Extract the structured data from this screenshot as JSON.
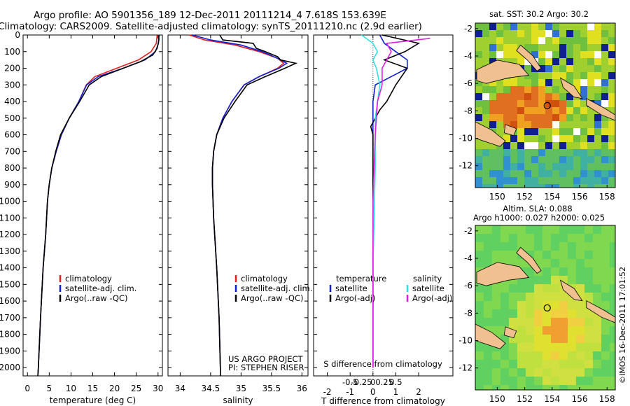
{
  "header": {
    "title_line1": "Argo profile: AO 5901356_189 12-Dec-2011 20111214_4 7.618S 153.639E",
    "title_line2": "Climatology: CARS2009. Satellite-adjusted climatology: synTS_20111210.nc (2.9d earlier)"
  },
  "side_note": "©IMOS 16-Dec-2011 17:01:52",
  "credits": {
    "line1": "US ARGO PROJECT",
    "line2": "PI: STEPHEN RISER"
  },
  "colors": {
    "climatology": "#e02020",
    "satellite": "#1020d0",
    "argo": "#000000",
    "salinity_satellite": "#30e0e8",
    "salinity_argo": "#e020e0",
    "land": "#f0c090"
  },
  "chart_data": [
    {
      "name": "temperature-profile",
      "type": "line",
      "xlabel": "temperature (deg C)",
      "xlim": [
        -1,
        31
      ],
      "ylim": [
        0,
        2050
      ],
      "y_inverted": true,
      "xticks": [
        0,
        5,
        10,
        15,
        20,
        25,
        30
      ],
      "yticks": [
        0,
        100,
        200,
        300,
        400,
        500,
        600,
        700,
        800,
        900,
        1000,
        1100,
        1200,
        1300,
        1400,
        1500,
        1600,
        1700,
        1800,
        1900,
        2000
      ],
      "legend": [
        "climatology",
        "satellite-adj. clim.",
        "Argo(..raw -QC)"
      ],
      "series": [
        {
          "name": "climatology",
          "color": "#e02020",
          "points": [
            [
              29.8,
              0
            ],
            [
              29.6,
              50
            ],
            [
              28.4,
              100
            ],
            [
              25.5,
              150
            ],
            [
              20.5,
              200
            ],
            [
              15.5,
              250
            ],
            [
              13.5,
              300
            ],
            [
              11.8,
              400
            ],
            [
              9.6,
              500
            ],
            [
              7.8,
              600
            ],
            [
              6.6,
              700
            ],
            [
              5.6,
              800
            ],
            [
              5.0,
              900
            ],
            [
              4.6,
              1000
            ],
            [
              4.2,
              1200
            ],
            [
              3.6,
              1400
            ],
            [
              3.0,
              1700
            ],
            [
              2.5,
              2000
            ],
            [
              2.4,
              2050
            ]
          ]
        },
        {
          "name": "satellite-adj. clim.",
          "color": "#1020d0",
          "points": [
            [
              30.2,
              0
            ],
            [
              30.1,
              50
            ],
            [
              29.4,
              100
            ],
            [
              27.0,
              150
            ],
            [
              22.0,
              200
            ],
            [
              16.3,
              250
            ],
            [
              13.6,
              300
            ],
            [
              11.8,
              400
            ],
            [
              9.6,
              500
            ],
            [
              7.8,
              600
            ],
            [
              6.6,
              700
            ],
            [
              5.6,
              800
            ],
            [
              5.0,
              900
            ],
            [
              4.6,
              1000
            ],
            [
              4.2,
              1200
            ],
            [
              3.6,
              1400
            ],
            [
              3.0,
              1700
            ],
            [
              2.5,
              2000
            ],
            [
              2.4,
              2050
            ]
          ]
        },
        {
          "name": "Argo(..raw -QC)",
          "color": "#000000",
          "points": [
            [
              30.2,
              0
            ],
            [
              30.2,
              30
            ],
            [
              29.8,
              80
            ],
            [
              28.8,
              120
            ],
            [
              26.0,
              160
            ],
            [
              22.0,
              200
            ],
            [
              17.0,
              250
            ],
            [
              14.2,
              300
            ],
            [
              12.0,
              400
            ],
            [
              9.6,
              500
            ],
            [
              7.6,
              600
            ],
            [
              6.5,
              700
            ],
            [
              5.6,
              800
            ],
            [
              5.0,
              900
            ],
            [
              4.6,
              1000
            ],
            [
              4.2,
              1200
            ],
            [
              3.6,
              1400
            ],
            [
              3.0,
              1700
            ],
            [
              2.5,
              2000
            ],
            [
              2.4,
              2050
            ]
          ]
        }
      ]
    },
    {
      "name": "salinity-profile",
      "type": "line",
      "xlabel": "salinity",
      "xlim": [
        33.8,
        36.1
      ],
      "ylim": [
        0,
        2050
      ],
      "y_inverted": true,
      "xticks": [
        34,
        34.5,
        35,
        35.5,
        36
      ],
      "legend": [
        "climatology",
        "satellite-adj. clim.",
        "Argo(..raw -QC)"
      ],
      "series": [
        {
          "name": "climatology",
          "color": "#e02020",
          "points": [
            [
              34.15,
              0
            ],
            [
              34.4,
              30
            ],
            [
              34.9,
              60
            ],
            [
              35.3,
              100
            ],
            [
              35.6,
              140
            ],
            [
              35.7,
              170
            ],
            [
              35.6,
              200
            ],
            [
              35.3,
              250
            ],
            [
              35.05,
              300
            ],
            [
              34.85,
              400
            ],
            [
              34.7,
              500
            ],
            [
              34.6,
              600
            ],
            [
              34.55,
              700
            ],
            [
              34.53,
              800
            ],
            [
              34.53,
              900
            ],
            [
              34.55,
              1100
            ],
            [
              34.6,
              1400
            ],
            [
              34.64,
              1700
            ],
            [
              34.66,
              2000
            ],
            [
              34.66,
              2050
            ]
          ]
        },
        {
          "name": "satellite-adj. clim.",
          "color": "#1020d0",
          "points": [
            [
              34.2,
              0
            ],
            [
              34.5,
              30
            ],
            [
              35.0,
              60
            ],
            [
              35.35,
              100
            ],
            [
              35.6,
              140
            ],
            [
              35.75,
              170
            ],
            [
              35.62,
              200
            ],
            [
              35.3,
              250
            ],
            [
              35.05,
              300
            ],
            [
              34.85,
              400
            ],
            [
              34.7,
              500
            ],
            [
              34.6,
              600
            ],
            [
              34.55,
              700
            ],
            [
              34.53,
              800
            ],
            [
              34.53,
              900
            ],
            [
              34.55,
              1100
            ],
            [
              34.6,
              1400
            ],
            [
              34.64,
              1700
            ],
            [
              34.66,
              2000
            ],
            [
              34.66,
              2050
            ]
          ]
        },
        {
          "name": "Argo(..raw -QC)",
          "color": "#000000",
          "points": [
            [
              34.65,
              0
            ],
            [
              34.7,
              30
            ],
            [
              35.2,
              50
            ],
            [
              35.25,
              80
            ],
            [
              35.4,
              100
            ],
            [
              35.6,
              130
            ],
            [
              35.65,
              150
            ],
            [
              35.9,
              170
            ],
            [
              35.72,
              200
            ],
            [
              35.4,
              250
            ],
            [
              35.1,
              300
            ],
            [
              34.9,
              400
            ],
            [
              34.72,
              500
            ],
            [
              34.6,
              600
            ],
            [
              34.55,
              700
            ],
            [
              34.53,
              800
            ],
            [
              34.53,
              900
            ],
            [
              34.55,
              1100
            ],
            [
              34.6,
              1400
            ],
            [
              34.64,
              1700
            ],
            [
              34.66,
              2000
            ],
            [
              34.66,
              2050
            ]
          ]
        }
      ]
    },
    {
      "name": "difference-profile",
      "type": "line",
      "xlabel": "T difference from climatology",
      "xlabel_top": "S difference from climatology",
      "xlim": [
        -2.6,
        3.5
      ],
      "ylim": [
        0,
        2050
      ],
      "y_inverted": true,
      "xticks": [
        -2,
        -1,
        0,
        1,
        2
      ],
      "xticks_s": [
        "-0.5",
        "-0.25",
        "0",
        "0.25",
        "0.5"
      ],
      "legend_groups": [
        {
          "title": "temperature",
          "entries": [
            "satellite",
            "Argo(-adj)"
          ]
        },
        {
          "title": "salinity",
          "entries": [
            "satellite",
            "Argo(-adj)"
          ]
        }
      ],
      "series": [
        {
          "name": "temperature satellite",
          "color": "#1020d0",
          "points": [
            [
              0.3,
              0
            ],
            [
              0.5,
              50
            ],
            [
              1.0,
              100
            ],
            [
              1.5,
              150
            ],
            [
              1.5,
              200
            ],
            [
              0.8,
              250
            ],
            [
              0.1,
              300
            ],
            [
              0.0,
              400
            ],
            [
              0.0,
              600
            ],
            [
              0.0,
              1000
            ],
            [
              0.0,
              2000
            ]
          ]
        },
        {
          "name": "temperature Argo(-adj)",
          "color": "#000000",
          "points": [
            [
              0.4,
              0
            ],
            [
              2.0,
              50
            ],
            [
              1.4,
              100
            ],
            [
              0.5,
              150
            ],
            [
              1.5,
              200
            ],
            [
              1.0,
              300
            ],
            [
              0.6,
              400
            ],
            [
              0.3,
              450
            ],
            [
              -0.1,
              550
            ],
            [
              0.0,
              600
            ],
            [
              0.0,
              1000
            ],
            [
              0.0,
              2000
            ]
          ]
        },
        {
          "name": "salinity satellite",
          "color": "#30e0e8",
          "points": [
            [
              -0.5,
              0
            ],
            [
              0.0,
              50
            ],
            [
              0.2,
              100
            ],
            [
              0.0,
              150
            ],
            [
              0.15,
              200
            ],
            [
              0.3,
              300
            ],
            [
              0.1,
              500
            ],
            [
              0.1,
              800
            ],
            [
              0.0,
              1400
            ],
            [
              0.0,
              2000
            ]
          ]
        },
        {
          "name": "salinity Argo(-adj)",
          "color": "#e020e0",
          "points": [
            [
              2.5,
              20
            ],
            [
              0.6,
              50
            ],
            [
              0.8,
              100
            ],
            [
              0.6,
              150
            ],
            [
              0.4,
              200
            ],
            [
              0.4,
              300
            ],
            [
              0.2,
              400
            ],
            [
              0.1,
              600
            ],
            [
              0.0,
              1000
            ],
            [
              0.0,
              2000
            ]
          ]
        }
      ]
    },
    {
      "name": "sst-map",
      "type": "heatmap",
      "title": "sat. SST: 30.2  Argo: 30.2",
      "xlim": [
        148.4,
        158.6
      ],
      "ylim": [
        -13.6,
        -1.6
      ],
      "xticks": [
        150,
        152,
        154,
        156,
        158
      ],
      "yticks": [
        -2,
        -4,
        -6,
        -8,
        -10,
        -12
      ],
      "marker": [
        153.639,
        -7.618
      ]
    },
    {
      "name": "sla-map",
      "type": "heatmap",
      "title_line1": "Altim. SLA: 0.088",
      "title_line2": "Argo h1000: 0.027  h2000: 0.025",
      "xlim": [
        148.4,
        158.6
      ],
      "ylim": [
        -13.6,
        -1.6
      ],
      "xticks": [
        150,
        152,
        154,
        156,
        158
      ],
      "yticks": [
        -2,
        -4,
        -6,
        -8,
        -10,
        -12
      ],
      "marker": [
        153.639,
        -7.618
      ]
    }
  ]
}
